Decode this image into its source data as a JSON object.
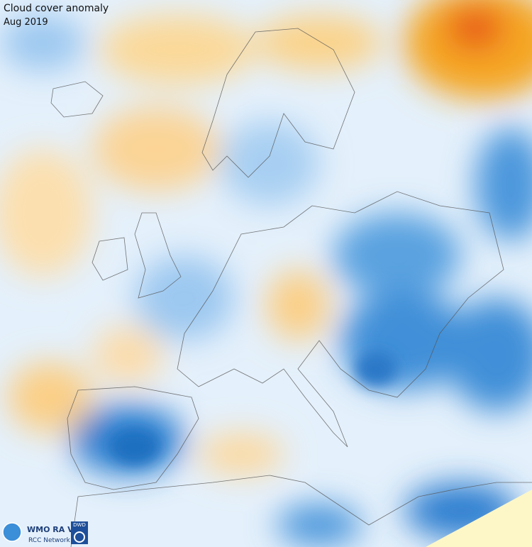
{
  "header": {
    "title": "Cloud cover anomaly",
    "subtitle": "Aug 2019"
  },
  "logos": {
    "wmo": "WMO RA VI",
    "network": "RCC Network",
    "dwd": "DWD"
  }
}
